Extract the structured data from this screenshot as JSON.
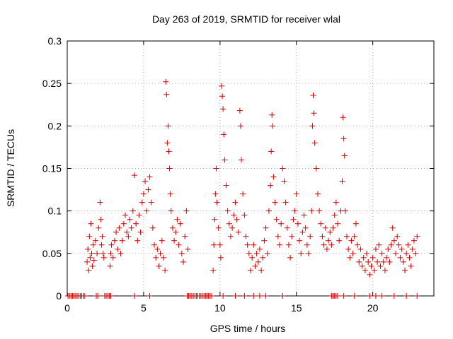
{
  "chart_data": {
    "type": "scatter",
    "title": "Day 263 of 2019, SRMTID for receiver wlal",
    "xlabel": "GPS time / hours",
    "ylabel": "SRMTID / TECUs",
    "xlim": [
      0,
      24
    ],
    "ylim": [
      0,
      0.3
    ],
    "xticks": [
      "0",
      "5",
      "10",
      "15",
      "20"
    ],
    "yticks": [
      "0",
      "0.05",
      "0.1",
      "0.15",
      "0.2",
      "0.25",
      "0.3"
    ],
    "xtick_values": [
      0,
      5,
      10,
      15,
      20
    ],
    "ytick_values": [
      0,
      0.05,
      0.1,
      0.15,
      0.2,
      0.25,
      0.3
    ],
    "grid": true,
    "marker": "+",
    "color": "#cc0000",
    "series": [
      {
        "name": "SRMTID",
        "points": [
          [
            1.3,
            0.04
          ],
          [
            1.35,
            0.055
          ],
          [
            1.4,
            0.03
          ],
          [
            1.45,
            0.07
          ],
          [
            1.5,
            0.045
          ],
          [
            1.55,
            0.085
          ],
          [
            1.6,
            0.05
          ],
          [
            1.65,
            0.035
          ],
          [
            1.7,
            0.06
          ],
          [
            1.75,
            0.042
          ],
          [
            1.85,
            0.065
          ],
          [
            1.95,
            0.05
          ],
          [
            2.05,
            0.08
          ],
          [
            2.15,
            0.11
          ],
          [
            2.2,
            0.09
          ],
          [
            2.25,
            0.06
          ],
          [
            2.3,
            0.07
          ],
          [
            2.35,
            0.05
          ],
          [
            2.4,
            0.045
          ],
          [
            2.8,
            0.035
          ],
          [
            2.85,
            0.05
          ],
          [
            2.9,
            0.06
          ],
          [
            3.0,
            0.045
          ],
          [
            3.1,
            0.065
          ],
          [
            3.2,
            0.075
          ],
          [
            3.3,
            0.055
          ],
          [
            3.4,
            0.08
          ],
          [
            3.5,
            0.05
          ],
          [
            3.6,
            0.065
          ],
          [
            3.7,
            0.085
          ],
          [
            3.8,
            0.095
          ],
          [
            3.9,
            0.075
          ],
          [
            4.0,
            0.07
          ],
          [
            4.1,
            0.09
          ],
          [
            4.2,
            0.08
          ],
          [
            4.3,
            0.1
          ],
          [
            4.4,
            0.142
          ],
          [
            4.5,
            0.085
          ],
          [
            4.6,
            0.065
          ],
          [
            4.7,
            0.095
          ],
          [
            4.8,
            0.075
          ],
          [
            4.9,
            0.11
          ],
          [
            5.0,
            0.12
          ],
          [
            5.1,
            0.135
          ],
          [
            5.2,
            0.1
          ],
          [
            5.3,
            0.125
          ],
          [
            5.4,
            0.14
          ],
          [
            5.5,
            0.11
          ],
          [
            5.6,
            0.08
          ],
          [
            5.7,
            0.06
          ],
          [
            5.8,
            0.045
          ],
          [
            5.9,
            0.055
          ],
          [
            6.0,
            0.035
          ],
          [
            6.1,
            0.05
          ],
          [
            6.2,
            0.065
          ],
          [
            6.3,
            0.045
          ],
          [
            6.4,
            0.03
          ],
          [
            6.45,
            0.252
          ],
          [
            6.5,
            0.237
          ],
          [
            6.55,
            0.18
          ],
          [
            6.6,
            0.2
          ],
          [
            6.65,
            0.17
          ],
          [
            6.7,
            0.15
          ],
          [
            6.75,
            0.12
          ],
          [
            6.8,
            0.1
          ],
          [
            6.9,
            0.08
          ],
          [
            7.0,
            0.065
          ],
          [
            7.1,
            0.075
          ],
          [
            7.2,
            0.09
          ],
          [
            7.3,
            0.06
          ],
          [
            7.4,
            0.085
          ],
          [
            7.5,
            0.05
          ],
          [
            7.6,
            0.04
          ],
          [
            7.7,
            0.07
          ],
          [
            7.8,
            0.1
          ],
          [
            7.9,
            0.055
          ],
          [
            9.55,
            0.03
          ],
          [
            9.6,
            0.06
          ],
          [
            9.65,
            0.09
          ],
          [
            9.7,
            0.12
          ],
          [
            9.75,
            0.15
          ],
          [
            9.8,
            0.11
          ],
          [
            9.9,
            0.08
          ],
          [
            10.0,
            0.06
          ],
          [
            10.05,
            0.045
          ],
          [
            10.1,
            0.247
          ],
          [
            10.15,
            0.235
          ],
          [
            10.2,
            0.22
          ],
          [
            10.25,
            0.19
          ],
          [
            10.3,
            0.16
          ],
          [
            10.4,
            0.13
          ],
          [
            10.5,
            0.1
          ],
          [
            10.6,
            0.085
          ],
          [
            10.7,
            0.07
          ],
          [
            10.8,
            0.08
          ],
          [
            10.9,
            0.095
          ],
          [
            11.0,
            0.11
          ],
          [
            11.1,
            0.09
          ],
          [
            11.2,
            0.075
          ],
          [
            11.3,
            0.218
          ],
          [
            11.35,
            0.2
          ],
          [
            11.4,
            0.16
          ],
          [
            11.5,
            0.12
          ],
          [
            11.6,
            0.095
          ],
          [
            11.7,
            0.07
          ],
          [
            11.8,
            0.06
          ],
          [
            11.9,
            0.05
          ],
          [
            12.0,
            0.03
          ],
          [
            12.1,
            0.045
          ],
          [
            12.2,
            0.06
          ],
          [
            12.3,
            0.035
          ],
          [
            12.4,
            0.05
          ],
          [
            12.5,
            0.04
          ],
          [
            12.6,
            0.055
          ],
          [
            12.7,
            0.03
          ],
          [
            12.8,
            0.045
          ],
          [
            12.9,
            0.065
          ],
          [
            13.0,
            0.08
          ],
          [
            13.1,
            0.05
          ],
          [
            13.2,
            0.1
          ],
          [
            13.3,
            0.13
          ],
          [
            13.35,
            0.17
          ],
          [
            13.4,
            0.213
          ],
          [
            13.45,
            0.2
          ],
          [
            13.5,
            0.14
          ],
          [
            13.6,
            0.11
          ],
          [
            13.7,
            0.09
          ],
          [
            13.8,
            0.07
          ],
          [
            13.9,
            0.06
          ],
          [
            14.0,
            0.085
          ],
          [
            14.1,
            0.15
          ],
          [
            14.2,
            0.135
          ],
          [
            14.3,
            0.11
          ],
          [
            14.4,
            0.08
          ],
          [
            14.5,
            0.06
          ],
          [
            14.6,
            0.045
          ],
          [
            14.7,
            0.07
          ],
          [
            14.8,
            0.09
          ],
          [
            14.9,
            0.1
          ],
          [
            15.0,
            0.12
          ],
          [
            15.1,
            0.085
          ],
          [
            15.2,
            0.065
          ],
          [
            15.3,
            0.05
          ],
          [
            15.4,
            0.075
          ],
          [
            15.5,
            0.095
          ],
          [
            15.6,
            0.08
          ],
          [
            15.7,
            0.06
          ],
          [
            15.8,
            0.05
          ],
          [
            15.9,
            0.07
          ],
          [
            16.0,
            0.1
          ],
          [
            16.05,
            0.2
          ],
          [
            16.1,
            0.236
          ],
          [
            16.15,
            0.215
          ],
          [
            16.2,
            0.18
          ],
          [
            16.3,
            0.15
          ],
          [
            16.4,
            0.12
          ],
          [
            16.5,
            0.1
          ],
          [
            16.6,
            0.085
          ],
          [
            16.7,
            0.07
          ],
          [
            16.8,
            0.06
          ],
          [
            16.9,
            0.08
          ],
          [
            17.0,
            0.055
          ],
          [
            17.1,
            0.065
          ],
          [
            17.2,
            0.075
          ],
          [
            17.3,
            0.06
          ],
          [
            17.4,
            0.08
          ],
          [
            17.5,
            0.095
          ],
          [
            17.6,
            0.11
          ],
          [
            17.7,
            0.085
          ],
          [
            17.8,
            0.065
          ],
          [
            17.9,
            0.1
          ],
          [
            18.0,
            0.135
          ],
          [
            18.05,
            0.21
          ],
          [
            18.1,
            0.185
          ],
          [
            18.15,
            0.165
          ],
          [
            18.2,
            0.1
          ],
          [
            18.3,
            0.07
          ],
          [
            18.4,
            0.055
          ],
          [
            18.5,
            0.045
          ],
          [
            18.6,
            0.065
          ],
          [
            18.7,
            0.05
          ],
          [
            18.8,
            0.07
          ],
          [
            18.9,
            0.085
          ],
          [
            19.0,
            0.06
          ],
          [
            19.1,
            0.04
          ],
          [
            19.2,
            0.055
          ],
          [
            19.3,
            0.035
          ],
          [
            19.4,
            0.045
          ],
          [
            19.5,
            0.03
          ],
          [
            19.6,
            0.05
          ],
          [
            19.7,
            0.04
          ],
          [
            19.8,
            0.025
          ],
          [
            19.9,
            0.035
          ],
          [
            20.0,
            0.045
          ],
          [
            20.1,
            0.03
          ],
          [
            20.2,
            0.055
          ],
          [
            20.3,
            0.04
          ],
          [
            20.4,
            0.06
          ],
          [
            20.5,
            0.035
          ],
          [
            20.6,
            0.05
          ],
          [
            20.7,
            0.04
          ],
          [
            20.8,
            0.03
          ],
          [
            20.9,
            0.045
          ],
          [
            21.0,
            0.055
          ],
          [
            21.1,
            0.04
          ],
          [
            21.2,
            0.06
          ],
          [
            21.3,
            0.08
          ],
          [
            21.4,
            0.065
          ],
          [
            21.5,
            0.05
          ],
          [
            21.6,
            0.07
          ],
          [
            21.7,
            0.06
          ],
          [
            21.8,
            0.045
          ],
          [
            21.9,
            0.055
          ],
          [
            22.0,
            0.04
          ],
          [
            22.1,
            0.03
          ],
          [
            22.2,
            0.05
          ],
          [
            22.3,
            0.06
          ],
          [
            22.4,
            0.045
          ],
          [
            22.5,
            0.035
          ],
          [
            22.6,
            0.055
          ],
          [
            22.7,
            0.065
          ],
          [
            22.8,
            0.05
          ],
          [
            22.9,
            0.07
          ],
          [
            0.05,
            0
          ],
          [
            0.15,
            0
          ],
          [
            0.25,
            0
          ],
          [
            0.35,
            0
          ],
          [
            0.45,
            0
          ],
          [
            0.55,
            0
          ],
          [
            0.65,
            0
          ],
          [
            0.75,
            0
          ],
          [
            0.85,
            0
          ],
          [
            0.95,
            0
          ],
          [
            1.05,
            0
          ],
          [
            1.15,
            0
          ],
          [
            1.9,
            0
          ],
          [
            2.0,
            0
          ],
          [
            2.45,
            0
          ],
          [
            2.55,
            0
          ],
          [
            2.65,
            0
          ],
          [
            2.75,
            0
          ],
          [
            2.85,
            0
          ],
          [
            4.4,
            0
          ],
          [
            5.4,
            0
          ],
          [
            7.85,
            0
          ],
          [
            7.95,
            0
          ],
          [
            8.05,
            0
          ],
          [
            8.15,
            0
          ],
          [
            8.25,
            0
          ],
          [
            8.35,
            0
          ],
          [
            8.45,
            0
          ],
          [
            8.55,
            0
          ],
          [
            8.65,
            0
          ],
          [
            8.75,
            0
          ],
          [
            8.85,
            0
          ],
          [
            8.95,
            0
          ],
          [
            9.05,
            0
          ],
          [
            9.15,
            0
          ],
          [
            9.25,
            0
          ],
          [
            9.35,
            0
          ],
          [
            9.45,
            0
          ],
          [
            10.2,
            0
          ],
          [
            11.0,
            0
          ],
          [
            11.6,
            0
          ],
          [
            12.2,
            0
          ],
          [
            12.6,
            0
          ],
          [
            13.0,
            0
          ],
          [
            14.1,
            0
          ],
          [
            17.3,
            0
          ],
          [
            17.4,
            0
          ],
          [
            17.5,
            0
          ],
          [
            17.6,
            0
          ],
          [
            17.7,
            0
          ],
          [
            18.1,
            0
          ],
          [
            18.8,
            0
          ],
          [
            19.8,
            0
          ],
          [
            20.2,
            0
          ],
          [
            20.6,
            0
          ],
          [
            21.4,
            0
          ],
          [
            22.2,
            0
          ],
          [
            22.9,
            0
          ]
        ]
      }
    ]
  }
}
